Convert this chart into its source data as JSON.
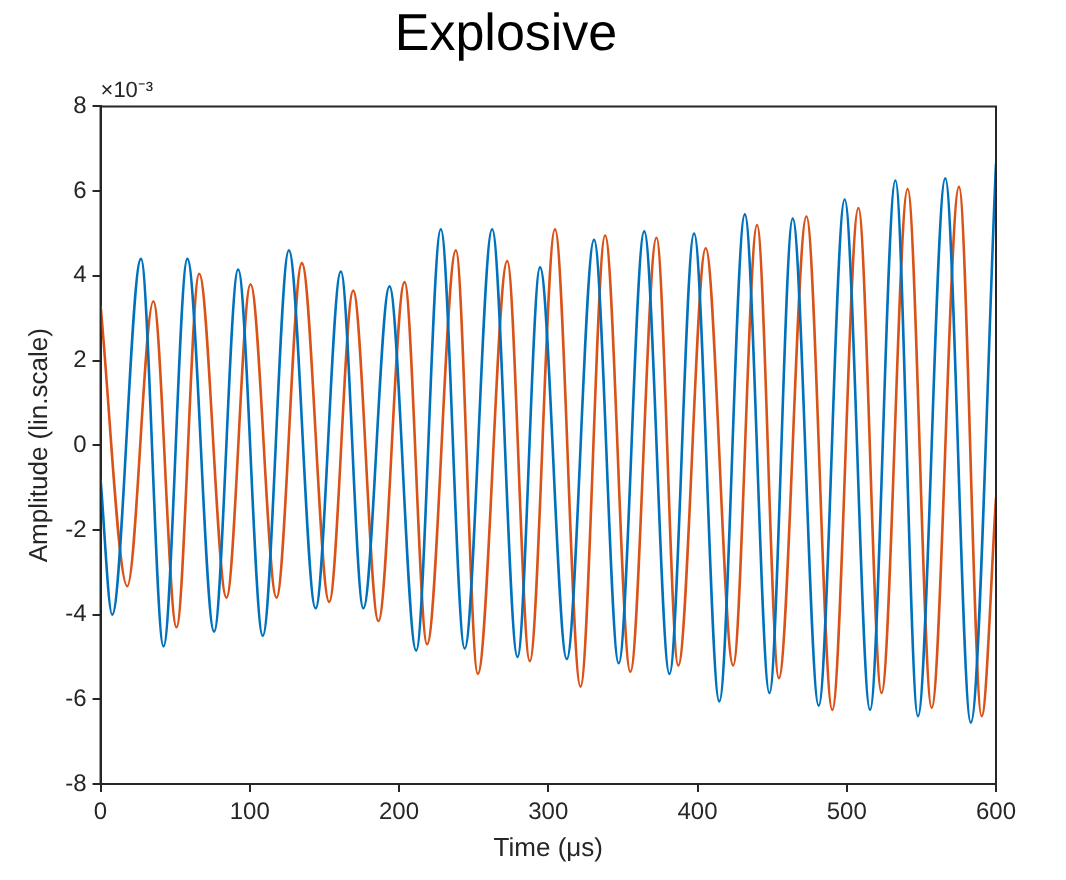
{
  "chart_data": {
    "type": "line",
    "title": "Explosive",
    "xlabel": "Time (μs)",
    "ylabel": "Amplitude (lin.scale)",
    "annotations": [
      "×10⁻³"
    ],
    "xlim": [
      0,
      600
    ],
    "xticks": [
      0,
      100,
      200,
      300,
      400,
      500,
      600
    ],
    "ylim": [
      -8,
      8
    ],
    "yticks": [
      -8,
      -6,
      -4,
      -2,
      0,
      2,
      4,
      6,
      8
    ],
    "grid": false,
    "legend": false,
    "marker": "none",
    "line_style": "solid",
    "series": [
      {
        "color": "#0072bd",
        "x": [
          0,
          7.8,
          27.1,
          42.2,
          58.2,
          76.1,
          92.2,
          108.7,
          126.2,
          144.1,
          161.0,
          176.1,
          193.6,
          211.5,
          228.0,
          244.0,
          262.4,
          279.4,
          294.5,
          312.4,
          330.7,
          347.2,
          364.3,
          381.2,
          397.7,
          414.6,
          431.7,
          448.2,
          463.8,
          481.2,
          498.6,
          515.6,
          532.6,
          547.7,
          566.0,
          583.1,
          600
        ],
        "values": [
          -0.8,
          -4.0,
          4.4,
          -4.75,
          4.4,
          -4.4,
          4.15,
          -4.5,
          4.6,
          -3.85,
          4.1,
          -3.85,
          3.75,
          -4.85,
          5.1,
          -4.8,
          5.1,
          -5.0,
          4.2,
          -5.05,
          4.85,
          -5.15,
          5.05,
          -5.4,
          5.0,
          -6.05,
          5.45,
          -5.85,
          5.35,
          -6.15,
          5.8,
          -6.25,
          6.25,
          -6.4,
          6.3,
          -6.55,
          6.65
        ]
      },
      {
        "color": "#d95319",
        "x": [
          0,
          17.9,
          35.4,
          50.9,
          66.1,
          84.4,
          100.5,
          117.9,
          134.9,
          153.2,
          169.3,
          186.2,
          203.7,
          218.8,
          238.1,
          252.8,
          272.5,
          287.6,
          304.5,
          321.6,
          338.1,
          355.0,
          372.5,
          387.1,
          405.5,
          423.9,
          439.9,
          454.5,
          473.0,
          490.3,
          507.8,
          523.3,
          540.8,
          556.9,
          575.2,
          590.4,
          600
        ],
        "values": [
          3.3,
          -3.33,
          3.4,
          -4.3,
          4.05,
          -3.6,
          3.8,
          -3.6,
          4.3,
          -3.7,
          3.65,
          -4.15,
          3.85,
          -4.7,
          4.6,
          -5.4,
          4.35,
          -5.1,
          5.1,
          -5.7,
          4.95,
          -5.35,
          4.9,
          -5.2,
          4.65,
          -5.2,
          5.2,
          -5.5,
          5.4,
          -6.25,
          5.6,
          -5.85,
          6.05,
          -6.2,
          6.1,
          -6.4,
          -1.25
        ]
      }
    ]
  }
}
